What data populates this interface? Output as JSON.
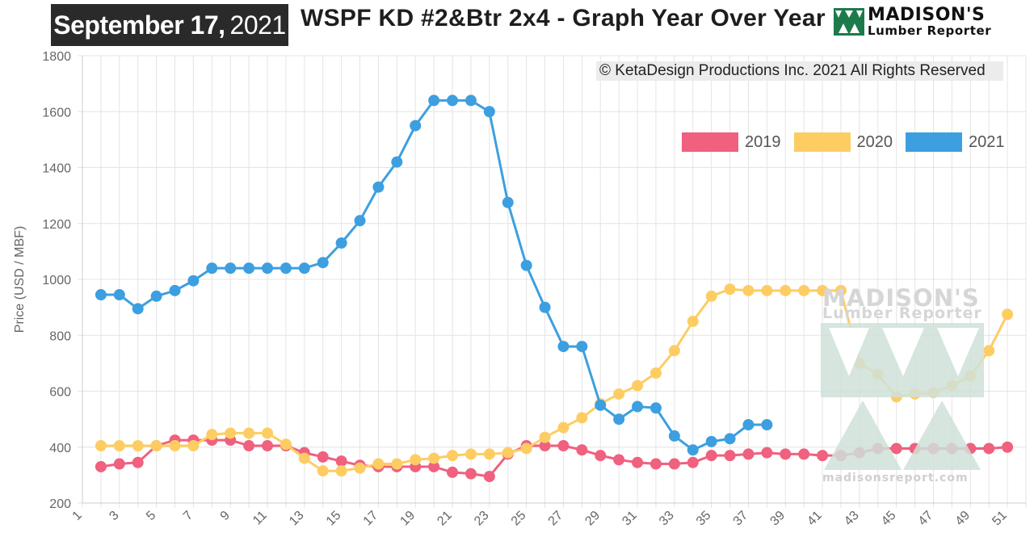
{
  "header": {
    "date_month_day": "September 17,",
    "date_year": "2021",
    "title": "WSPF KD #2&Btr 2x4 - Graph Year Over Year"
  },
  "logo": {
    "line1": "MADISON'S",
    "line2": "Lumber Reporter"
  },
  "copyright": "© KetaDesign Productions Inc. 2021 All Rights Reserved",
  "watermark": {
    "line1": "MADISON'S",
    "line2": "Lumber Reporter",
    "url": "madisonsreport.com"
  },
  "colors": {
    "series_2019": "#f0607f",
    "series_2020": "#fdcd63",
    "series_2021": "#3d9fe0",
    "grid": "#e4e4e4",
    "logo_green": "#1d7a4b",
    "watermark_green": "#cfe1d8"
  },
  "chart_data": {
    "type": "line",
    "title": "WSPF KD #2&Btr 2x4 - Graph Year Over Year",
    "xlabel": "",
    "ylabel": "Price (USD / MBF)",
    "ylim": [
      200,
      1800
    ],
    "xlim": [
      1,
      52
    ],
    "grid": true,
    "legend": "top-right",
    "x_tick_labels": [
      "1",
      "3",
      "5",
      "7",
      "9",
      "11",
      "13",
      "15",
      "17",
      "19",
      "21",
      "23",
      "25",
      "27",
      "29",
      "31",
      "33",
      "35",
      "37",
      "39",
      "41",
      "43",
      "45",
      "47",
      "49",
      "51"
    ],
    "y_tick_labels": [
      "200",
      "400",
      "600",
      "800",
      "1000",
      "1200",
      "1400",
      "1600",
      "1800"
    ],
    "series": [
      {
        "name": "2019",
        "x": [
          2,
          3,
          4,
          5,
          6,
          7,
          8,
          9,
          10,
          11,
          12,
          13,
          14,
          15,
          16,
          17,
          18,
          19,
          20,
          21,
          22,
          23,
          24,
          25,
          26,
          27,
          28,
          29,
          30,
          31,
          32,
          33,
          34,
          35,
          36,
          37,
          38,
          39,
          40,
          41,
          42,
          43,
          44,
          45,
          46,
          47,
          48,
          49,
          50,
          51
        ],
        "values": [
          330,
          340,
          345,
          405,
          425,
          425,
          425,
          425,
          405,
          405,
          405,
          380,
          365,
          350,
          335,
          330,
          330,
          330,
          330,
          310,
          305,
          295,
          375,
          405,
          405,
          405,
          390,
          370,
          355,
          345,
          340,
          340,
          345,
          370,
          370,
          375,
          380,
          375,
          375,
          370,
          370,
          380,
          395,
          395,
          395,
          395,
          395,
          395,
          395,
          400
        ]
      },
      {
        "name": "2020",
        "x": [
          2,
          3,
          4,
          5,
          6,
          7,
          8,
          9,
          10,
          11,
          12,
          13,
          14,
          15,
          16,
          17,
          18,
          19,
          20,
          21,
          22,
          23,
          24,
          25,
          26,
          27,
          28,
          29,
          30,
          31,
          32,
          33,
          34,
          35,
          36,
          37,
          38,
          39,
          40,
          41,
          42,
          43,
          44,
          45,
          46,
          47,
          48,
          49,
          50,
          51
        ],
        "values": [
          405,
          405,
          405,
          405,
          405,
          405,
          445,
          450,
          450,
          450,
          410,
          360,
          315,
          315,
          325,
          340,
          340,
          355,
          360,
          370,
          375,
          375,
          380,
          395,
          435,
          470,
          505,
          555,
          590,
          620,
          665,
          745,
          850,
          940,
          965,
          960,
          960,
          960,
          960,
          960,
          960,
          700,
          660,
          580,
          590,
          595,
          620,
          655,
          745,
          875
        ]
      },
      {
        "name": "2021",
        "x": [
          2,
          3,
          4,
          5,
          6,
          7,
          8,
          9,
          10,
          11,
          12,
          13,
          14,
          15,
          16,
          17,
          18,
          19,
          20,
          21,
          22,
          23,
          24,
          25,
          26,
          27,
          28,
          29,
          30,
          31,
          32,
          33,
          34,
          35,
          36,
          37,
          38
        ],
        "values": [
          945,
          945,
          895,
          940,
          960,
          995,
          1040,
          1040,
          1040,
          1040,
          1040,
          1040,
          1060,
          1130,
          1210,
          1330,
          1420,
          1550,
          1640,
          1640,
          1640,
          1600,
          1275,
          1050,
          900,
          760,
          760,
          550,
          500,
          545,
          540,
          440,
          390,
          420,
          430,
          480,
          480
        ]
      }
    ]
  }
}
